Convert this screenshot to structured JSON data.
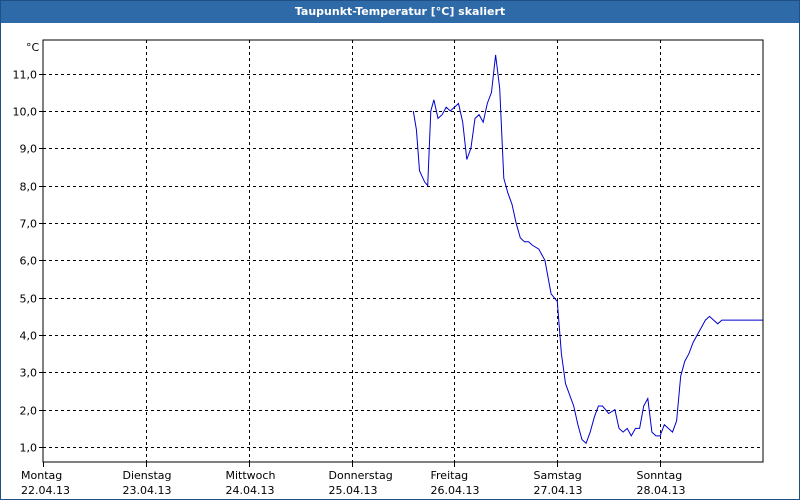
{
  "window": {
    "title": "Taupunkt-Temperatur [°C] skaliert"
  },
  "chart_data": {
    "type": "line",
    "title": "Taupunkt-Temperatur [°C] skaliert",
    "ylabel": "°C",
    "xlabel": "",
    "ylim": [
      0.6,
      11.9
    ],
    "xlim": [
      0,
      7
    ],
    "yticks": [
      1.0,
      2.0,
      3.0,
      4.0,
      5.0,
      6.0,
      7.0,
      8.0,
      9.0,
      10.0,
      11.0
    ],
    "yticklabels": [
      "1,0",
      "2,0",
      "3,0",
      "4,0",
      "5,0",
      "6,0",
      "7,0",
      "8,0",
      "9,0",
      "10,0",
      "11,0"
    ],
    "grid": true,
    "days": [
      {
        "weekday": "Montag",
        "date": "22.04.13"
      },
      {
        "weekday": "Dienstag",
        "date": "23.04.13"
      },
      {
        "weekday": "Mittwoch",
        "date": "24.04.13"
      },
      {
        "weekday": "Donnerstag",
        "date": "25.04.13"
      },
      {
        "weekday": "Freitag",
        "date": "26.04.13"
      },
      {
        "weekday": "Samstag",
        "date": "27.04.13"
      },
      {
        "weekday": "Sonntag",
        "date": "28.04.13"
      }
    ],
    "line_color": "#0000cc",
    "series": [
      {
        "x": [
          3.6,
          3.63,
          3.66,
          3.71,
          3.74,
          3.77,
          3.8,
          3.84,
          3.88,
          3.92,
          3.96,
          4.0,
          4.04,
          4.08,
          4.12,
          4.16,
          4.2,
          4.24,
          4.28,
          4.32,
          4.36,
          4.4,
          4.44,
          4.48,
          4.52,
          4.56,
          4.6,
          4.64,
          4.68,
          4.72,
          4.76,
          4.82,
          4.88,
          4.94,
          5.0,
          5.04,
          5.08,
          5.12,
          5.16,
          5.2,
          5.24,
          5.28,
          5.32,
          5.36,
          5.4,
          5.44,
          5.5,
          5.56,
          5.6,
          5.64,
          5.68,
          5.72,
          5.76,
          5.8,
          5.84,
          5.88,
          5.92,
          5.96,
          6.0,
          6.04,
          6.08,
          6.12,
          6.16,
          6.2,
          6.24,
          6.28,
          6.32,
          6.36,
          6.4,
          6.44,
          6.48,
          6.52,
          6.56,
          6.6,
          6.64,
          6.68,
          6.72,
          6.76,
          6.8,
          6.84,
          6.88,
          6.92,
          6.96,
          7.0
        ],
        "y": [
          10.0,
          9.5,
          8.4,
          8.1,
          8.0,
          10.0,
          10.3,
          9.8,
          9.9,
          10.1,
          10.0,
          10.1,
          10.2,
          9.7,
          8.7,
          9.0,
          9.8,
          9.9,
          9.7,
          10.2,
          10.5,
          11.5,
          10.6,
          8.2,
          7.8,
          7.5,
          7.0,
          6.6,
          6.5,
          6.5,
          6.4,
          6.3,
          6.0,
          5.1,
          4.9,
          3.5,
          2.7,
          2.4,
          2.1,
          1.6,
          1.2,
          1.1,
          1.4,
          1.8,
          2.1,
          2.1,
          1.9,
          2.0,
          1.5,
          1.4,
          1.5,
          1.3,
          1.5,
          1.5,
          2.1,
          2.3,
          1.4,
          1.3,
          1.3,
          1.6,
          1.5,
          1.4,
          1.7,
          2.9,
          3.3,
          3.5,
          3.8,
          4.0,
          4.2,
          4.4,
          4.5,
          4.4,
          4.3,
          4.4,
          4.4,
          4.4,
          4.4,
          4.4,
          4.4,
          4.4,
          4.4,
          4.4,
          4.4,
          4.4
        ]
      }
    ]
  }
}
